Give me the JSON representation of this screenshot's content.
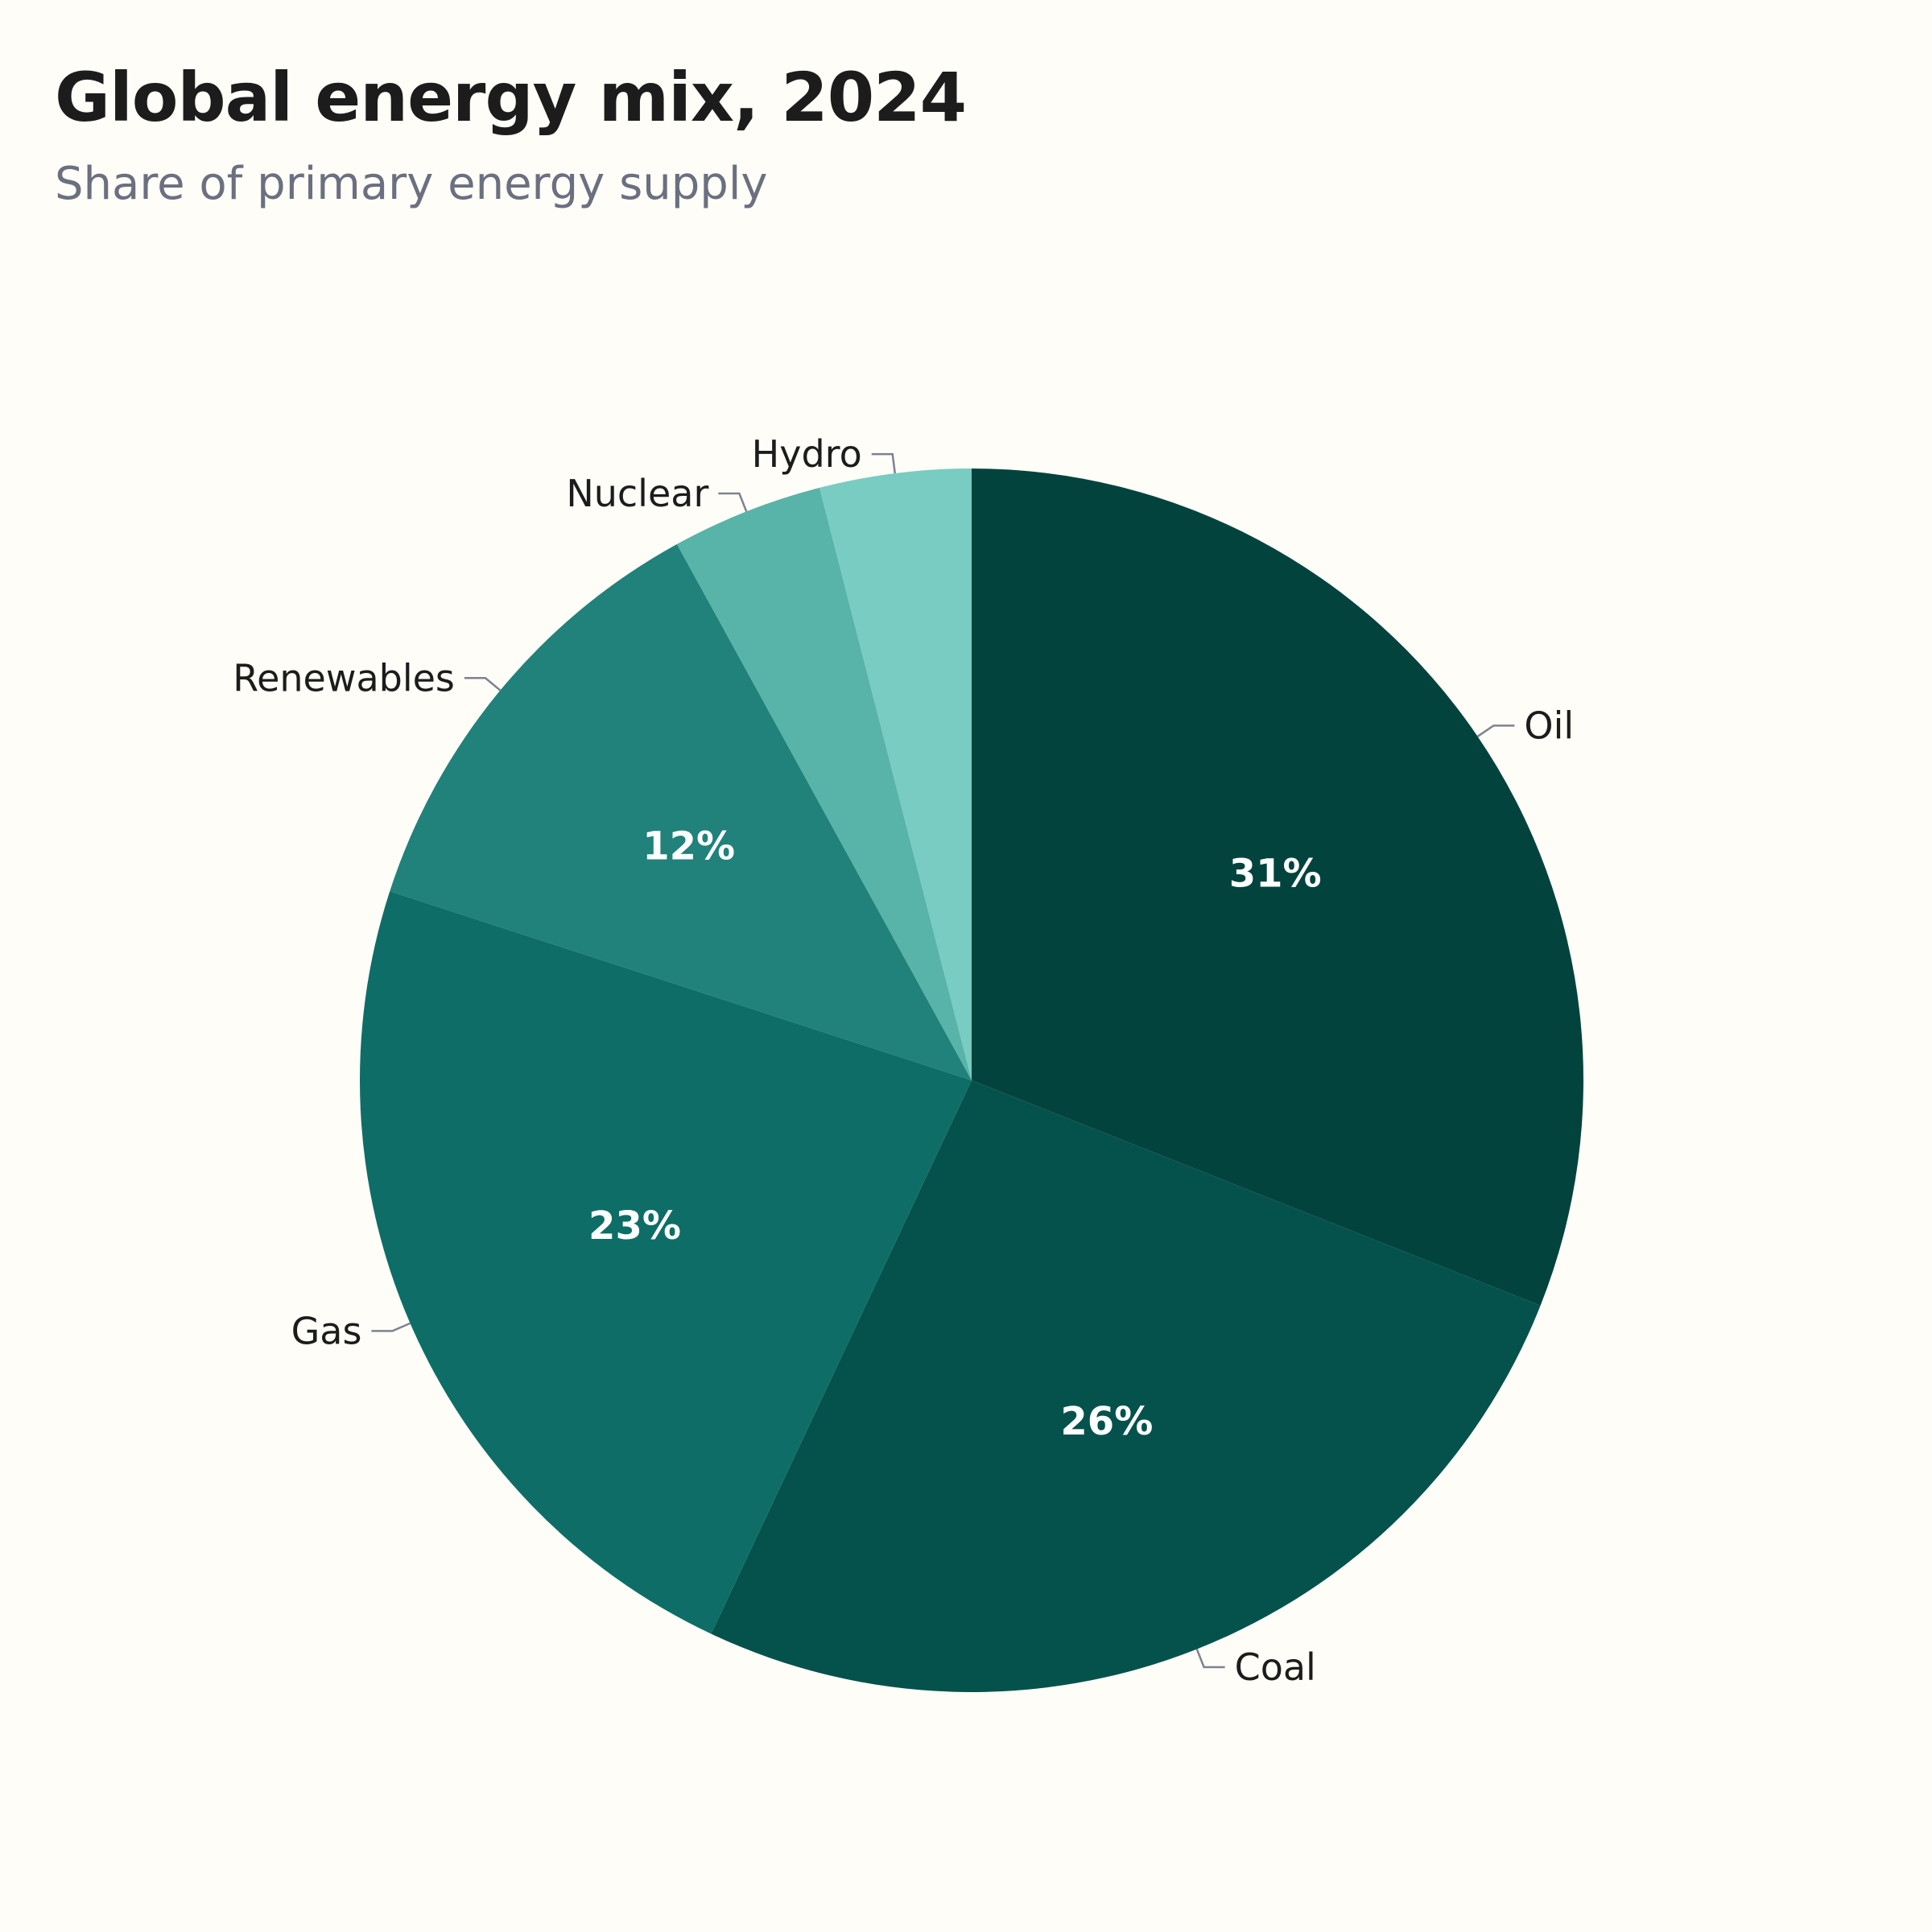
{
  "chart_data": {
    "type": "pie",
    "title": "Global energy mix, 2024",
    "subtitle": "Share of primary energy supply",
    "start": "12 o'clock",
    "direction": "clockwise",
    "slices": [
      {
        "label": "Oil",
        "value": 31,
        "pct_label": "31%",
        "color": "#03433e"
      },
      {
        "label": "Coal",
        "value": 26,
        "pct_label": "26%",
        "color": "#05524c"
      },
      {
        "label": "Gas",
        "value": 23,
        "pct_label": "23%",
        "color": "#0e6e67"
      },
      {
        "label": "Renewables",
        "value": 12,
        "pct_label": "12%",
        "color": "#20827a"
      },
      {
        "label": "Nuclear",
        "value": 4,
        "pct_label": "",
        "color": "#58b3a8"
      },
      {
        "label": "Hydro",
        "value": 4,
        "pct_label": "",
        "color": "#78ccc2"
      }
    ]
  }
}
